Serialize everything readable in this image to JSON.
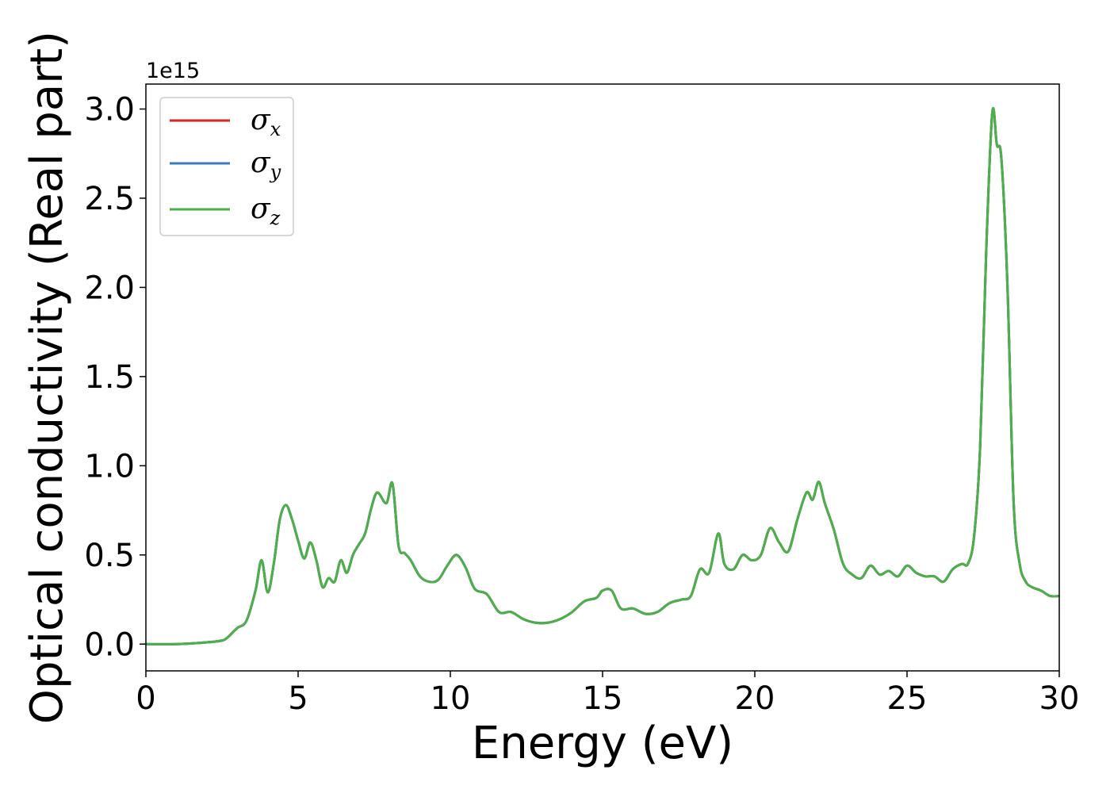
{
  "chart_data": {
    "type": "line",
    "title": "",
    "xlabel": "Energy (eV)",
    "ylabel": "Optical conductivity (Real part)",
    "y_offset_label": "1e15",
    "y_multiplier": 1000000000000000.0,
    "xlim": [
      0,
      30
    ],
    "ylim": [
      -0.15,
      3.14
    ],
    "x_ticks": [
      0,
      5,
      10,
      15,
      20,
      25,
      30
    ],
    "x_tick_labels": [
      "0",
      "5",
      "10",
      "15",
      "20",
      "25",
      "30"
    ],
    "y_ticks": [
      0.0,
      0.5,
      1.0,
      1.5,
      2.0,
      2.5,
      3.0
    ],
    "y_tick_labels": [
      "0.0",
      "0.5",
      "1.0",
      "1.5",
      "2.0",
      "2.5",
      "3.0"
    ],
    "grid": false,
    "legend_position": "top-left",
    "x": [
      0,
      1.0,
      2.0,
      2.5,
      2.7,
      3.0,
      3.3,
      3.6,
      3.8,
      4.0,
      4.2,
      4.4,
      4.6,
      4.8,
      5.0,
      5.2,
      5.4,
      5.6,
      5.8,
      6.0,
      6.2,
      6.4,
      6.6,
      6.8,
      7.0,
      7.2,
      7.4,
      7.6,
      7.9,
      8.1,
      8.3,
      8.5,
      8.7,
      9.0,
      9.3,
      9.6,
      9.9,
      10.2,
      10.5,
      10.8,
      11.2,
      11.6,
      12.0,
      12.4,
      12.8,
      13.2,
      13.6,
      14.0,
      14.4,
      14.8,
      15.0,
      15.3,
      15.6,
      16.0,
      16.4,
      16.8,
      17.2,
      17.6,
      17.9,
      18.2,
      18.5,
      18.8,
      19.0,
      19.3,
      19.6,
      19.9,
      20.2,
      20.5,
      20.8,
      21.1,
      21.4,
      21.7,
      21.9,
      22.1,
      22.3,
      22.6,
      22.9,
      23.2,
      23.5,
      23.8,
      24.1,
      24.4,
      24.7,
      25.0,
      25.3,
      25.6,
      25.9,
      26.2,
      26.5,
      26.8,
      27.0,
      27.2,
      27.4,
      27.6,
      27.8,
      27.95,
      28.1,
      28.3,
      28.5,
      28.7,
      28.9,
      29.1,
      29.4,
      29.7,
      30.0
    ],
    "series": [
      {
        "name": "σx",
        "color": "#d62728"
      },
      {
        "name": "σy",
        "color": "#3a7bbf"
      },
      {
        "name": "σz",
        "color": "#4daf4a"
      }
    ],
    "values": [
      0.0,
      0.0,
      0.01,
      0.02,
      0.04,
      0.09,
      0.13,
      0.3,
      0.47,
      0.29,
      0.45,
      0.7,
      0.78,
      0.7,
      0.58,
      0.48,
      0.57,
      0.47,
      0.32,
      0.37,
      0.35,
      0.47,
      0.4,
      0.5,
      0.56,
      0.62,
      0.76,
      0.85,
      0.79,
      0.9,
      0.55,
      0.51,
      0.47,
      0.38,
      0.35,
      0.36,
      0.44,
      0.5,
      0.43,
      0.31,
      0.28,
      0.18,
      0.18,
      0.14,
      0.12,
      0.12,
      0.14,
      0.18,
      0.24,
      0.26,
      0.3,
      0.3,
      0.2,
      0.2,
      0.17,
      0.18,
      0.23,
      0.25,
      0.27,
      0.42,
      0.4,
      0.62,
      0.45,
      0.42,
      0.5,
      0.47,
      0.5,
      0.65,
      0.57,
      0.52,
      0.7,
      0.85,
      0.81,
      0.91,
      0.79,
      0.64,
      0.45,
      0.39,
      0.37,
      0.44,
      0.39,
      0.41,
      0.38,
      0.44,
      0.4,
      0.38,
      0.38,
      0.35,
      0.42,
      0.45,
      0.45,
      0.6,
      1.1,
      2.2,
      2.98,
      2.8,
      2.72,
      2.0,
      0.8,
      0.45,
      0.35,
      0.32,
      0.3,
      0.27,
      0.27
    ]
  }
}
